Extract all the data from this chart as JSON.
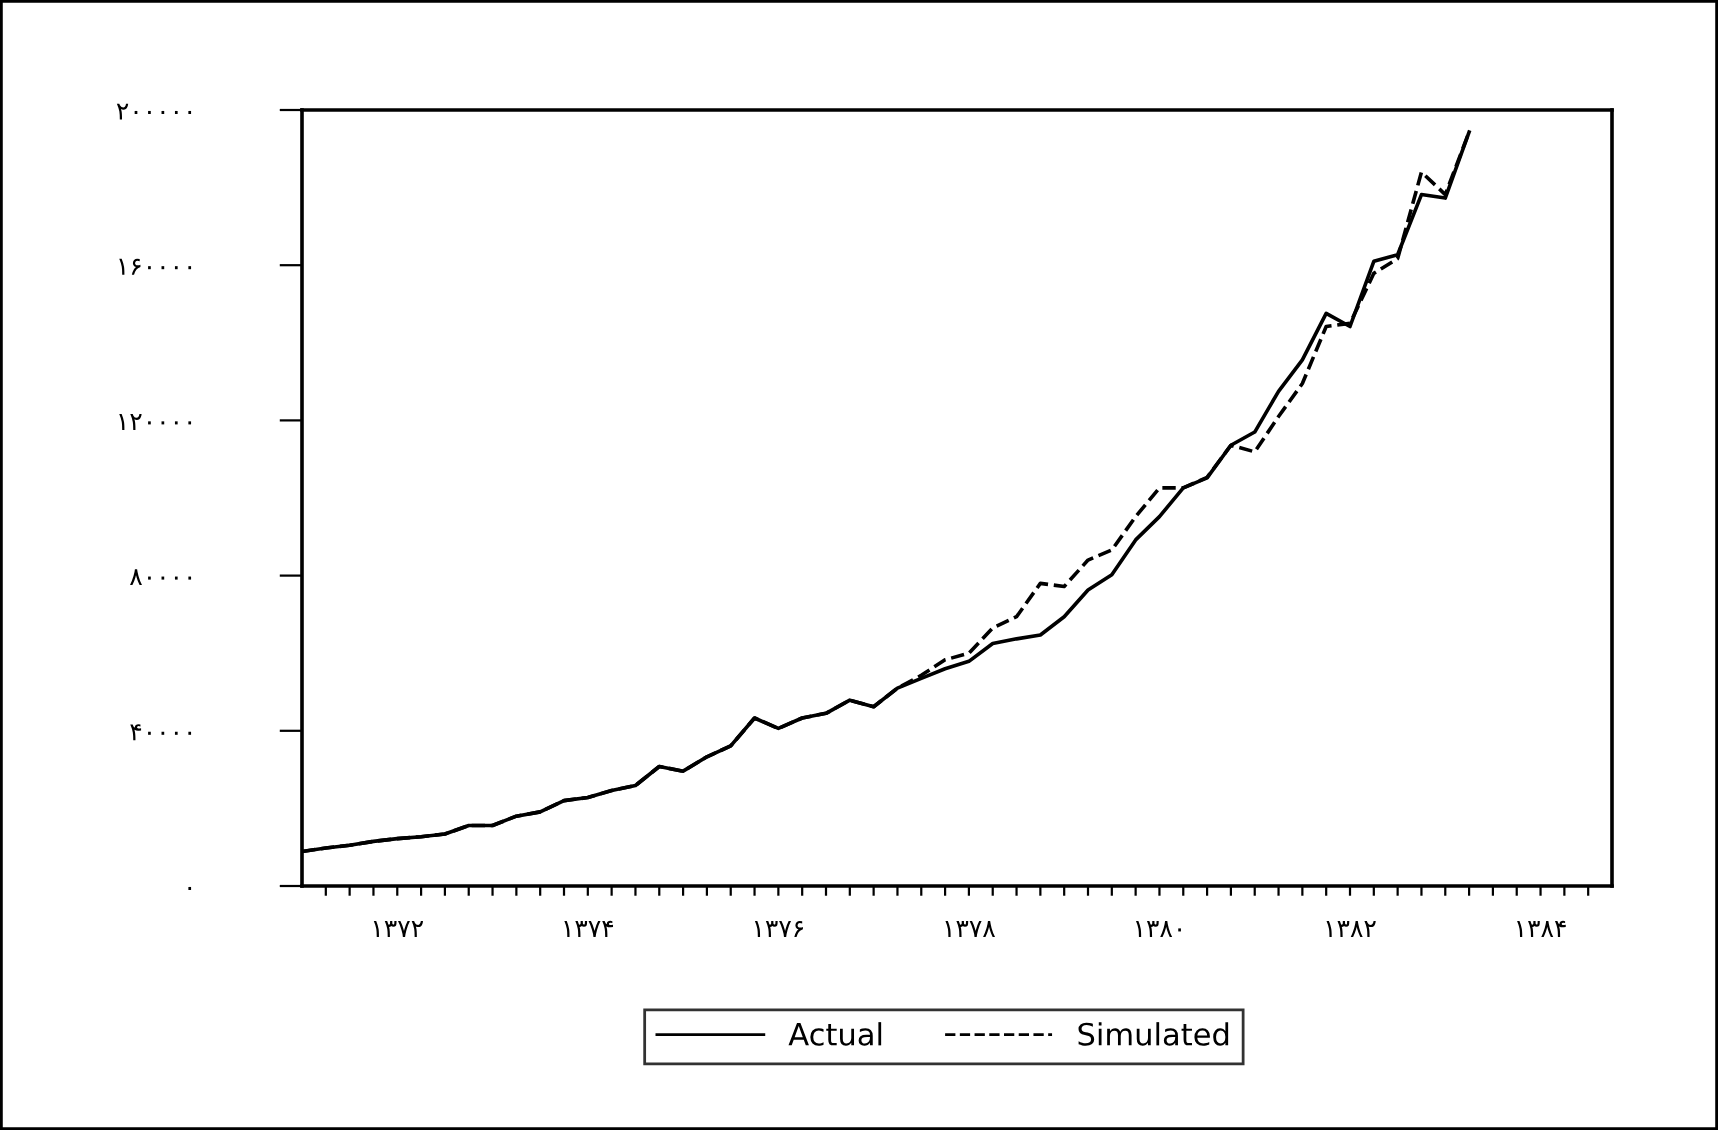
{
  "chart_data": {
    "type": "line",
    "x": [
      1371.0,
      1371.25,
      1371.5,
      1371.75,
      1372.0,
      1372.25,
      1372.5,
      1372.75,
      1373.0,
      1373.25,
      1373.5,
      1373.75,
      1374.0,
      1374.25,
      1374.5,
      1374.75,
      1375.0,
      1375.25,
      1375.5,
      1375.75,
      1376.0,
      1376.25,
      1376.5,
      1376.75,
      1377.0,
      1377.25,
      1377.5,
      1377.75,
      1378.0,
      1378.25,
      1378.5,
      1378.75,
      1379.0,
      1379.25,
      1379.5,
      1379.75,
      1380.0,
      1380.25,
      1380.5,
      1380.75,
      1381.0,
      1381.25,
      1381.5,
      1381.75,
      1382.0,
      1382.25,
      1382.5,
      1382.75,
      1383.0,
      1383.25
    ],
    "series": [
      {
        "name": "Actual",
        "color": "#000000",
        "line_style": "solid",
        "values": [
          8900,
          9800,
          10500,
          11500,
          12200,
          12700,
          13400,
          15600,
          15600,
          18000,
          19100,
          22000,
          22800,
          24600,
          25900,
          30800,
          29600,
          33300,
          36100,
          43300,
          40600,
          43300,
          44500,
          47900,
          46200,
          51000,
          53500,
          56000,
          57900,
          62500,
          63700,
          64700,
          69400,
          76300,
          80200,
          89200,
          95200,
          102600,
          105200,
          113600,
          117000,
          127500,
          135600,
          147600,
          144200,
          161000,
          162700,
          178200,
          177300,
          194300
        ]
      },
      {
        "name": "Simulated",
        "color": "#000000",
        "line_style": "dashed",
        "values": [
          8900,
          9800,
          10500,
          11500,
          12200,
          12700,
          13400,
          15600,
          15600,
          18000,
          19100,
          22000,
          22800,
          24600,
          25900,
          30800,
          29600,
          33300,
          36100,
          43300,
          40600,
          43300,
          44500,
          47900,
          46200,
          51000,
          54300,
          58300,
          60000,
          66500,
          69400,
          78000,
          77200,
          84000,
          86600,
          95200,
          102600,
          102600,
          105300,
          113600,
          111900,
          121000,
          129500,
          144200,
          145000,
          157900,
          161700,
          184000,
          178200,
          194300
        ]
      }
    ],
    "xlim": [
      1371.0,
      1384.75
    ],
    "xticks": [
      {
        "value": 1371.25,
        "label": null
      },
      {
        "value": 1371.5,
        "label": null
      },
      {
        "value": 1371.75,
        "label": null
      },
      {
        "value": 1372,
        "label": "۱۳۷۲"
      },
      {
        "value": 1372.25,
        "label": null
      },
      {
        "value": 1372.5,
        "label": null
      },
      {
        "value": 1372.75,
        "label": null
      },
      {
        "value": 1373,
        "label": null
      },
      {
        "value": 1373.25,
        "label": null
      },
      {
        "value": 1373.5,
        "label": null
      },
      {
        "value": 1373.75,
        "label": null
      },
      {
        "value": 1374,
        "label": "۱۳۷۴"
      },
      {
        "value": 1374.25,
        "label": null
      },
      {
        "value": 1374.5,
        "label": null
      },
      {
        "value": 1374.75,
        "label": null
      },
      {
        "value": 1375,
        "label": null
      },
      {
        "value": 1375.25,
        "label": null
      },
      {
        "value": 1375.5,
        "label": null
      },
      {
        "value": 1375.75,
        "label": null
      },
      {
        "value": 1376,
        "label": "۱۳۷۶"
      },
      {
        "value": 1376.25,
        "label": null
      },
      {
        "value": 1376.5,
        "label": null
      },
      {
        "value": 1376.75,
        "label": null
      },
      {
        "value": 1377,
        "label": null
      },
      {
        "value": 1377.25,
        "label": null
      },
      {
        "value": 1377.5,
        "label": null
      },
      {
        "value": 1377.75,
        "label": null
      },
      {
        "value": 1378,
        "label": "۱۳۷۸"
      },
      {
        "value": 1378.25,
        "label": null
      },
      {
        "value": 1378.5,
        "label": null
      },
      {
        "value": 1378.75,
        "label": null
      },
      {
        "value": 1379,
        "label": null
      },
      {
        "value": 1379.25,
        "label": null
      },
      {
        "value": 1379.5,
        "label": null
      },
      {
        "value": 1379.75,
        "label": null
      },
      {
        "value": 1380,
        "label": "۱۳۸۰"
      },
      {
        "value": 1380.25,
        "label": null
      },
      {
        "value": 1380.5,
        "label": null
      },
      {
        "value": 1380.75,
        "label": null
      },
      {
        "value": 1381,
        "label": null
      },
      {
        "value": 1381.25,
        "label": null
      },
      {
        "value": 1381.5,
        "label": null
      },
      {
        "value": 1381.75,
        "label": null
      },
      {
        "value": 1382,
        "label": "۱۳۸۲"
      },
      {
        "value": 1382.25,
        "label": null
      },
      {
        "value": 1382.5,
        "label": null
      },
      {
        "value": 1382.75,
        "label": null
      },
      {
        "value": 1383,
        "label": null
      },
      {
        "value": 1383.25,
        "label": null
      },
      {
        "value": 1383.5,
        "label": null
      },
      {
        "value": 1383.75,
        "label": null
      },
      {
        "value": 1384,
        "label": "۱۳۸۴"
      },
      {
        "value": 1384.25,
        "label": null
      },
      {
        "value": 1384.5,
        "label": null
      }
    ],
    "ylim": [
      0,
      200000
    ],
    "yticks": [
      {
        "value": 0,
        "label": "۰"
      },
      {
        "value": 40000,
        "label": "۴۰۰۰۰"
      },
      {
        "value": 80000,
        "label": "۸۰۰۰۰"
      },
      {
        "value": 120000,
        "label": "۱۲۰۰۰۰"
      },
      {
        "value": 160000,
        "label": "۱۶۰۰۰۰"
      },
      {
        "value": 200000,
        "label": "۲۰۰۰۰۰"
      }
    ],
    "grid": false,
    "legend": "bottom",
    "marker": "none"
  }
}
